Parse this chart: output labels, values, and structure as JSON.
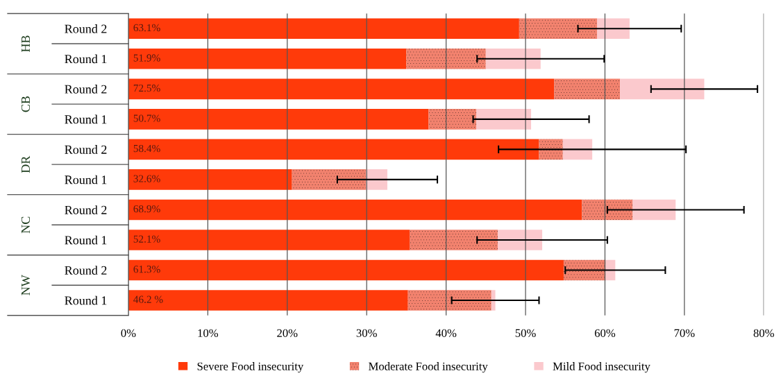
{
  "chart_data": {
    "type": "bar",
    "orientation": "horizontal",
    "stacked": true,
    "categories": [
      "Round 2",
      "Round 1",
      "Round 2",
      "Round 1",
      "Round 2",
      "Round 1",
      "Round 2",
      "Round 1",
      "Round 2",
      "Round 1"
    ],
    "series": [
      {
        "name": "Severe Food insecurity",
        "color": "#ff3a0a",
        "values": [
          49.2,
          35.0,
          53.6,
          37.8,
          51.7,
          20.6,
          57.1,
          35.4,
          54.8,
          35.2
        ]
      },
      {
        "name": "Moderate Food insecurity",
        "color": "#f2826e",
        "values": [
          9.8,
          10.0,
          8.3,
          6.0,
          3.0,
          9.3,
          6.4,
          11.1,
          5.3,
          10.5
        ]
      },
      {
        "name": "Mild Food insecurity",
        "color": "#fbc9cd",
        "values": [
          4.1,
          6.9,
          10.6,
          6.9,
          3.7,
          2.7,
          5.4,
          5.6,
          1.2,
          0.5
        ],
        "errors": [
          6.5,
          8.0,
          6.7,
          7.3,
          11.8,
          6.3,
          8.6,
          8.2,
          6.3,
          5.5
        ]
      }
    ],
    "totals": [
      "63.1%",
      "51.9%",
      "72.5%",
      "50.7%",
      "58.4%",
      "32.6%",
      "68.9%",
      "52.1%",
      "61.3%",
      "46.2 %"
    ],
    "annotations": [
      "HB",
      "CB",
      "DR",
      "NC",
      "NW"
    ],
    "xlim": [
      0,
      80
    ],
    "xticks": [
      {
        "value": 0,
        "label": "0%"
      },
      {
        "value": 10,
        "label": "10%"
      },
      {
        "value": 20,
        "label": "20%"
      },
      {
        "value": 30,
        "label": "30%"
      },
      {
        "value": 40,
        "label": "40%"
      },
      {
        "value": 50,
        "label": "50%"
      },
      {
        "value": 60,
        "label": "60%"
      },
      {
        "value": 70,
        "label": "70%"
      },
      {
        "value": 80,
        "label": "80%"
      }
    ],
    "grid": "x",
    "legend": "bottom"
  }
}
